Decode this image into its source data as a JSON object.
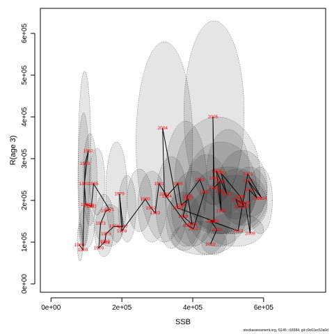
{
  "chart_data": {
    "type": "scatter",
    "xlabel": "SSB",
    "ylabel": "R(age 3)",
    "xlim": [
      -30000,
      775000
    ],
    "ylim": [
      -20000,
      660000
    ],
    "xticks": [
      0,
      200000,
      400000,
      600000
    ],
    "xtick_labels": [
      "0e+00",
      "2e+05",
      "4e+05",
      "6e+05"
    ],
    "yticks": [
      0,
      100000,
      200000,
      300000,
      400000,
      500000,
      600000
    ],
    "ytick_labels": [
      "0e+00",
      "1e+05",
      "2e+05",
      "3e+05",
      "4e+05",
      "5e+05",
      "6e+05"
    ],
    "grid": false,
    "points": [
      {
        "year": "1960",
        "x": 80000,
        "y": 93000
      },
      {
        "year": "1961",
        "x": 94000,
        "y": 240000
      },
      {
        "year": "1962",
        "x": 105000,
        "y": 318000
      },
      {
        "year": "1963",
        "x": 96000,
        "y": 288000
      },
      {
        "year": "1964",
        "x": 98000,
        "y": 190000
      },
      {
        "year": "1965",
        "x": 120000,
        "y": 240000
      },
      {
        "year": "1966",
        "x": 108000,
        "y": 188000
      },
      {
        "year": "1967",
        "x": 114000,
        "y": 185000
      },
      {
        "year": "1968",
        "x": 152000,
        "y": 102000
      },
      {
        "year": "1969",
        "x": 90000,
        "y": 82000
      },
      {
        "year": "1970",
        "x": 135000,
        "y": 86000
      },
      {
        "year": "1971",
        "x": 165000,
        "y": 178000
      },
      {
        "year": "1972",
        "x": 155000,
        "y": 175000
      },
      {
        "year": "1973",
        "x": 140000,
        "y": 145000
      },
      {
        "year": "1974",
        "x": 152000,
        "y": 98000
      },
      {
        "year": "1975",
        "x": 155000,
        "y": 120000
      },
      {
        "year": "1976",
        "x": 178000,
        "y": 138000
      },
      {
        "year": "1977",
        "x": 203000,
        "y": 137000
      },
      {
        "year": "1978",
        "x": 200000,
        "y": 127000
      },
      {
        "year": "1979",
        "x": 193000,
        "y": 216000
      },
      {
        "year": "1980",
        "x": 266000,
        "y": 203000
      },
      {
        "year": "1981",
        "x": 305000,
        "y": 240000
      },
      {
        "year": "1982",
        "x": 282000,
        "y": 182000
      },
      {
        "year": "1983",
        "x": 294000,
        "y": 170000
      },
      {
        "year": "1984",
        "x": 327000,
        "y": 210000
      },
      {
        "year": "1985",
        "x": 358000,
        "y": 240000
      },
      {
        "year": "1986",
        "x": 368000,
        "y": 189000
      },
      {
        "year": "1987",
        "x": 387000,
        "y": 203000
      },
      {
        "year": "1988",
        "x": 398000,
        "y": 143000
      },
      {
        "year": "1989",
        "x": 373000,
        "y": 162000
      },
      {
        "year": "1990",
        "x": 385000,
        "y": 210000
      },
      {
        "year": "1991",
        "x": 420000,
        "y": 250000
      },
      {
        "year": "1992",
        "x": 433000,
        "y": 220000
      },
      {
        "year": "1993",
        "x": 460000,
        "y": 150000
      },
      {
        "year": "1994",
        "x": 460000,
        "y": 253000
      },
      {
        "year": "1995",
        "x": 460000,
        "y": 230000
      },
      {
        "year": "1996",
        "x": 476000,
        "y": 245000
      },
      {
        "year": "1997",
        "x": 478000,
        "y": 222000
      },
      {
        "year": "1998",
        "x": 480000,
        "y": 175000
      },
      {
        "year": "1999",
        "x": 467000,
        "y": 270000
      },
      {
        "year": "2000",
        "x": 402000,
        "y": 132000
      },
      {
        "year": "2001",
        "x": 385000,
        "y": 140000
      },
      {
        "year": "2002",
        "x": 496000,
        "y": 215000
      },
      {
        "year": "2003",
        "x": 320000,
        "y": 215000
      },
      {
        "year": "2004",
        "x": 315000,
        "y": 373000
      },
      {
        "year": "2005",
        "x": 457000,
        "y": 400000
      },
      {
        "year": "2006",
        "x": 357000,
        "y": 182000
      },
      {
        "year": "2007",
        "x": 480000,
        "y": 265000
      },
      {
        "year": "2008",
        "x": 534000,
        "y": 209000
      },
      {
        "year": "2009",
        "x": 562000,
        "y": 121000
      },
      {
        "year": "2010",
        "x": 545000,
        "y": 185000
      },
      {
        "year": "2011",
        "x": 529000,
        "y": 185000
      },
      {
        "year": "2012",
        "x": 522000,
        "y": 202000
      },
      {
        "year": "2013",
        "x": 540000,
        "y": 193000
      },
      {
        "year": "2014",
        "x": 560000,
        "y": 225000
      },
      {
        "year": "2015",
        "x": 548000,
        "y": 194000
      },
      {
        "year": "2016",
        "x": 582000,
        "y": 205000
      },
      {
        "year": "2017",
        "x": 556000,
        "y": 247000
      },
      {
        "year": "2018",
        "x": 595000,
        "y": 205000
      },
      {
        "year": "2019",
        "x": 450000,
        "y": 95000
      },
      {
        "year": "2020",
        "x": 468000,
        "y": 130000
      },
      {
        "year": "2021",
        "x": 452000,
        "y": 150000
      },
      {
        "year": "2022",
        "x": 528000,
        "y": 127000
      },
      {
        "year": "2023",
        "x": 555000,
        "y": 263000
      }
    ],
    "path_order": [
      "1960",
      "1969",
      "1963",
      "1962",
      "1961",
      "1964",
      "1966",
      "1967",
      "1965",
      "1971",
      "1972",
      "1973",
      "1970",
      "1968",
      "1974",
      "1975",
      "1976",
      "1977",
      "1979",
      "1978",
      "1980",
      "1982",
      "1983",
      "1981",
      "1984",
      "1985",
      "1986",
      "1987",
      "1988",
      "1989",
      "1990",
      "1991",
      "1992",
      "2000",
      "2001",
      "2003",
      "2004",
      "2006",
      "1993",
      "2005",
      "1994",
      "1995",
      "1996",
      "1997",
      "1998",
      "1999",
      "2002",
      "2007",
      "2008",
      "2010",
      "2011",
      "2012",
      "2013",
      "2015",
      "2009",
      "2014",
      "2016",
      "2017",
      "2018",
      "2023",
      "2022",
      "2021",
      "2020",
      "2019"
    ],
    "ellipses": [
      {
        "cx": 95000,
        "cy": 300000,
        "rx": 18000,
        "ry": 210000
      },
      {
        "cx": 92000,
        "cy": 250000,
        "rx": 16000,
        "ry": 160000
      },
      {
        "cx": 110000,
        "cy": 250000,
        "rx": 20000,
        "ry": 110000
      },
      {
        "cx": 130000,
        "cy": 245000,
        "rx": 22000,
        "ry": 80000
      },
      {
        "cx": 82000,
        "cy": 100000,
        "rx": 8000,
        "ry": 45000
      },
      {
        "cx": 100000,
        "cy": 135000,
        "rx": 22000,
        "ry": 50000
      },
      {
        "cx": 150000,
        "cy": 140000,
        "rx": 28000,
        "ry": 75000
      },
      {
        "cx": 185000,
        "cy": 220000,
        "rx": 30000,
        "ry": 120000
      },
      {
        "cx": 165000,
        "cy": 140000,
        "rx": 40000,
        "ry": 50000
      },
      {
        "cx": 215000,
        "cy": 180000,
        "rx": 25000,
        "ry": 80000
      },
      {
        "cx": 250000,
        "cy": 200000,
        "rx": 35000,
        "ry": 75000
      },
      {
        "cx": 320000,
        "cy": 340000,
        "rx": 80000,
        "ry": 240000
      },
      {
        "cx": 285000,
        "cy": 185000,
        "rx": 40000,
        "ry": 85000
      },
      {
        "cx": 340000,
        "cy": 195000,
        "rx": 45000,
        "ry": 110000
      },
      {
        "cx": 380000,
        "cy": 240000,
        "rx": 60000,
        "ry": 150000
      },
      {
        "cx": 400000,
        "cy": 180000,
        "rx": 60000,
        "ry": 90000
      },
      {
        "cx": 460000,
        "cy": 410000,
        "rx": 85000,
        "ry": 220000
      },
      {
        "cx": 470000,
        "cy": 260000,
        "rx": 120000,
        "ry": 140000
      },
      {
        "cx": 480000,
        "cy": 230000,
        "rx": 100000,
        "ry": 110000
      },
      {
        "cx": 500000,
        "cy": 200000,
        "rx": 110000,
        "ry": 80000
      },
      {
        "cx": 520000,
        "cy": 190000,
        "rx": 90000,
        "ry": 70000
      },
      {
        "cx": 540000,
        "cy": 230000,
        "rx": 70000,
        "ry": 90000
      },
      {
        "cx": 470000,
        "cy": 160000,
        "rx": 80000,
        "ry": 70000
      },
      {
        "cx": 430000,
        "cy": 110000,
        "rx": 90000,
        "ry": 40000
      },
      {
        "cx": 520000,
        "cy": 130000,
        "rx": 80000,
        "ry": 40000
      },
      {
        "cx": 560000,
        "cy": 220000,
        "rx": 50000,
        "ry": 60000
      },
      {
        "cx": 500000,
        "cy": 270000,
        "rx": 60000,
        "ry": 100000
      },
      {
        "cx": 440000,
        "cy": 190000,
        "rx": 70000,
        "ry": 120000
      },
      {
        "cx": 375000,
        "cy": 150000,
        "rx": 50000,
        "ry": 70000
      },
      {
        "cx": 590000,
        "cy": 200000,
        "rx": 35000,
        "ry": 80000
      },
      {
        "cx": 520000,
        "cy": 215000,
        "rx": 50000,
        "ry": 60000
      },
      {
        "cx": 460000,
        "cy": 100000,
        "rx": 35000,
        "ry": 30000
      }
    ]
  },
  "footer_text": "stockassessment.org, f1145; r18384, git:c9c61ec53a0d"
}
